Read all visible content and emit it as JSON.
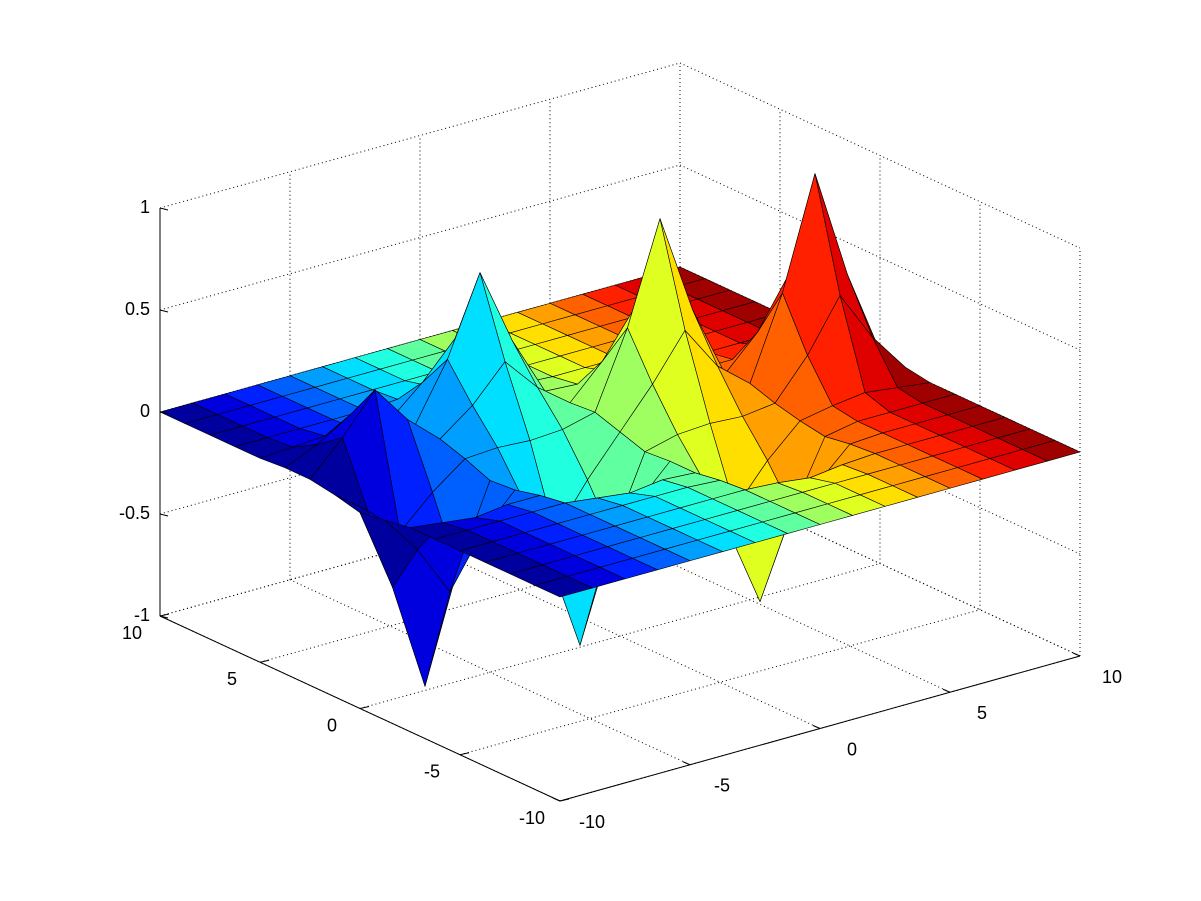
{
  "chart_data": {
    "type": "surface",
    "x": [
      -10,
      -8.75,
      -7.5,
      -6.25,
      -5,
      -3.75,
      -2.5,
      -1.25,
      0,
      1.25,
      2.5,
      3.75,
      5,
      6.25,
      7.5,
      8.75,
      10
    ],
    "y": [
      -10,
      -8.75,
      -7.5,
      -6.25,
      -5,
      -3.75,
      -2.5,
      -1.25,
      0,
      1.25,
      2.5,
      3.75,
      5,
      6.25,
      7.5,
      8.75,
      10
    ],
    "z": [
      [
        0,
        0,
        0,
        0,
        0,
        0,
        0,
        -0.02,
        -0.04,
        -0.01,
        0.01,
        0.01,
        0,
        0,
        0,
        0,
        0
      ],
      [
        0,
        0,
        0,
        0,
        0,
        0,
        -0.02,
        -0.21,
        -0.45,
        -0.13,
        0.17,
        0.08,
        0.01,
        0,
        0,
        0,
        0
      ],
      [
        0,
        0,
        0,
        0,
        0,
        0,
        -0.04,
        -0.46,
        -0.98,
        -0.28,
        0.36,
        0.18,
        0.02,
        0,
        0,
        0,
        0
      ],
      [
        0,
        0,
        0,
        0,
        0,
        0,
        -0.02,
        -0.21,
        -0.45,
        -0.13,
        0.17,
        0.08,
        0.01,
        0,
        0,
        0,
        0
      ],
      [
        0,
        0,
        0,
        0,
        0,
        0,
        -0.02,
        -0.05,
        -0.06,
        -0.01,
        0.03,
        0.04,
        0.01,
        0,
        0,
        0,
        0
      ],
      [
        0,
        0,
        0,
        0,
        0,
        -0.02,
        -0.19,
        -0.41,
        -0.19,
        0,
        0.15,
        0.32,
        0.15,
        0.01,
        0,
        0,
        0
      ],
      [
        0,
        0,
        0,
        0,
        0,
        -0.04,
        -0.41,
        -0.9,
        -0.41,
        -0.01,
        0.32,
        0.7,
        0.32,
        0.03,
        0,
        0,
        0
      ],
      [
        0,
        0,
        0,
        0,
        0,
        -0.02,
        -0.19,
        -0.41,
        -0.19,
        0,
        0.15,
        0.32,
        0.15,
        0.01,
        0,
        0,
        0
      ],
      [
        0,
        0,
        0,
        0,
        -0.01,
        -0.03,
        -0.03,
        -0.04,
        0,
        0.04,
        0.03,
        0.03,
        0.01,
        0,
        0,
        0,
        0
      ],
      [
        0,
        0,
        0,
        -0.01,
        -0.16,
        -0.35,
        -0.16,
        0,
        0.19,
        0.41,
        0.19,
        0.02,
        0,
        0,
        0,
        0,
        0
      ],
      [
        0,
        0,
        0,
        -0.03,
        -0.35,
        -0.75,
        -0.35,
        0.01,
        0.41,
        0.9,
        0.41,
        0.04,
        0,
        0,
        0,
        0,
        0
      ],
      [
        0,
        0,
        0,
        -0.01,
        -0.16,
        -0.35,
        -0.16,
        0,
        0.19,
        0.41,
        0.19,
        0.02,
        0,
        0,
        0,
        0,
        0
      ],
      [
        0,
        0,
        0,
        0,
        -0.01,
        -0.03,
        -0.01,
        0.02,
        0.06,
        0.05,
        0.02,
        0,
        0,
        0,
        0,
        0,
        0
      ],
      [
        0,
        0,
        0,
        0,
        0,
        0,
        0.02,
        0.21,
        0.46,
        0.21,
        0.02,
        0,
        0,
        0,
        0,
        0,
        0
      ],
      [
        0,
        0,
        0,
        0,
        0,
        0,
        0.04,
        0.46,
        1,
        0.46,
        0.04,
        0,
        0,
        0,
        0,
        0,
        0
      ],
      [
        0,
        0,
        0,
        0,
        0,
        0,
        0.02,
        0.21,
        0.46,
        0.21,
        0.02,
        0,
        0,
        0,
        0,
        0,
        0
      ],
      [
        0,
        0,
        0,
        0,
        0,
        0,
        0,
        0.02,
        0.04,
        0.02,
        0,
        0,
        0,
        0,
        0,
        0,
        0
      ]
    ],
    "xlim": [
      -10,
      10
    ],
    "xticks": [
      -10,
      -5,
      0,
      5,
      10
    ],
    "ylim": [
      -10,
      10
    ],
    "yticks": [
      -10,
      -5,
      0,
      5,
      10
    ],
    "zlim": [
      -1,
      1
    ],
    "zticks": [
      -1,
      -0.5,
      0,
      0.5,
      1
    ],
    "colormap": "jet",
    "edge_color": "#000000",
    "grid": true
  }
}
